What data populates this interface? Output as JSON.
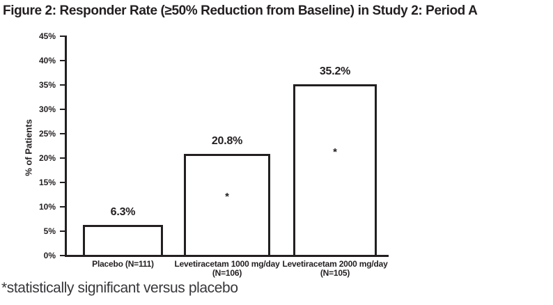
{
  "figure": {
    "title": "Figure 2: Responder Rate (≥50% Reduction from Baseline) in Study 2: Period A",
    "footnote": "*statistically significant versus placebo"
  },
  "chart_data": {
    "type": "bar",
    "title": "Figure 2: Responder Rate (≥50% Reduction from Baseline) in Study 2: Period A",
    "xlabel": "",
    "ylabel": "% of Patients",
    "ylim": [
      0,
      45
    ],
    "ytick_step": 5,
    "ytick_labels": [
      "0%",
      "5%",
      "10%",
      "15%",
      "20%",
      "25%",
      "30%",
      "35%",
      "40%",
      "45%"
    ],
    "grid": false,
    "legend": false,
    "categories": [
      "Placebo (N=111)",
      "Levetiracetam 1000 mg/day (N=106)",
      "Levetiracetam 2000 mg/day (N=105)"
    ],
    "category_lines": [
      [
        "Placebo (N=111)",
        ""
      ],
      [
        "Levetiracetam 1000 mg/day",
        "(N=106)"
      ],
      [
        "Levetiracetam 2000 mg/day",
        "(N=105)"
      ]
    ],
    "values": [
      6.3,
      20.8,
      35.2
    ],
    "value_labels": [
      "6.3%",
      "20.8%",
      "35.2%"
    ],
    "statistically_significant": [
      false,
      true,
      true
    ],
    "significance_marker": "*",
    "colors": {
      "ink": "#231f20",
      "bar_fill": "#ffffff",
      "background": "#ffffff"
    }
  }
}
